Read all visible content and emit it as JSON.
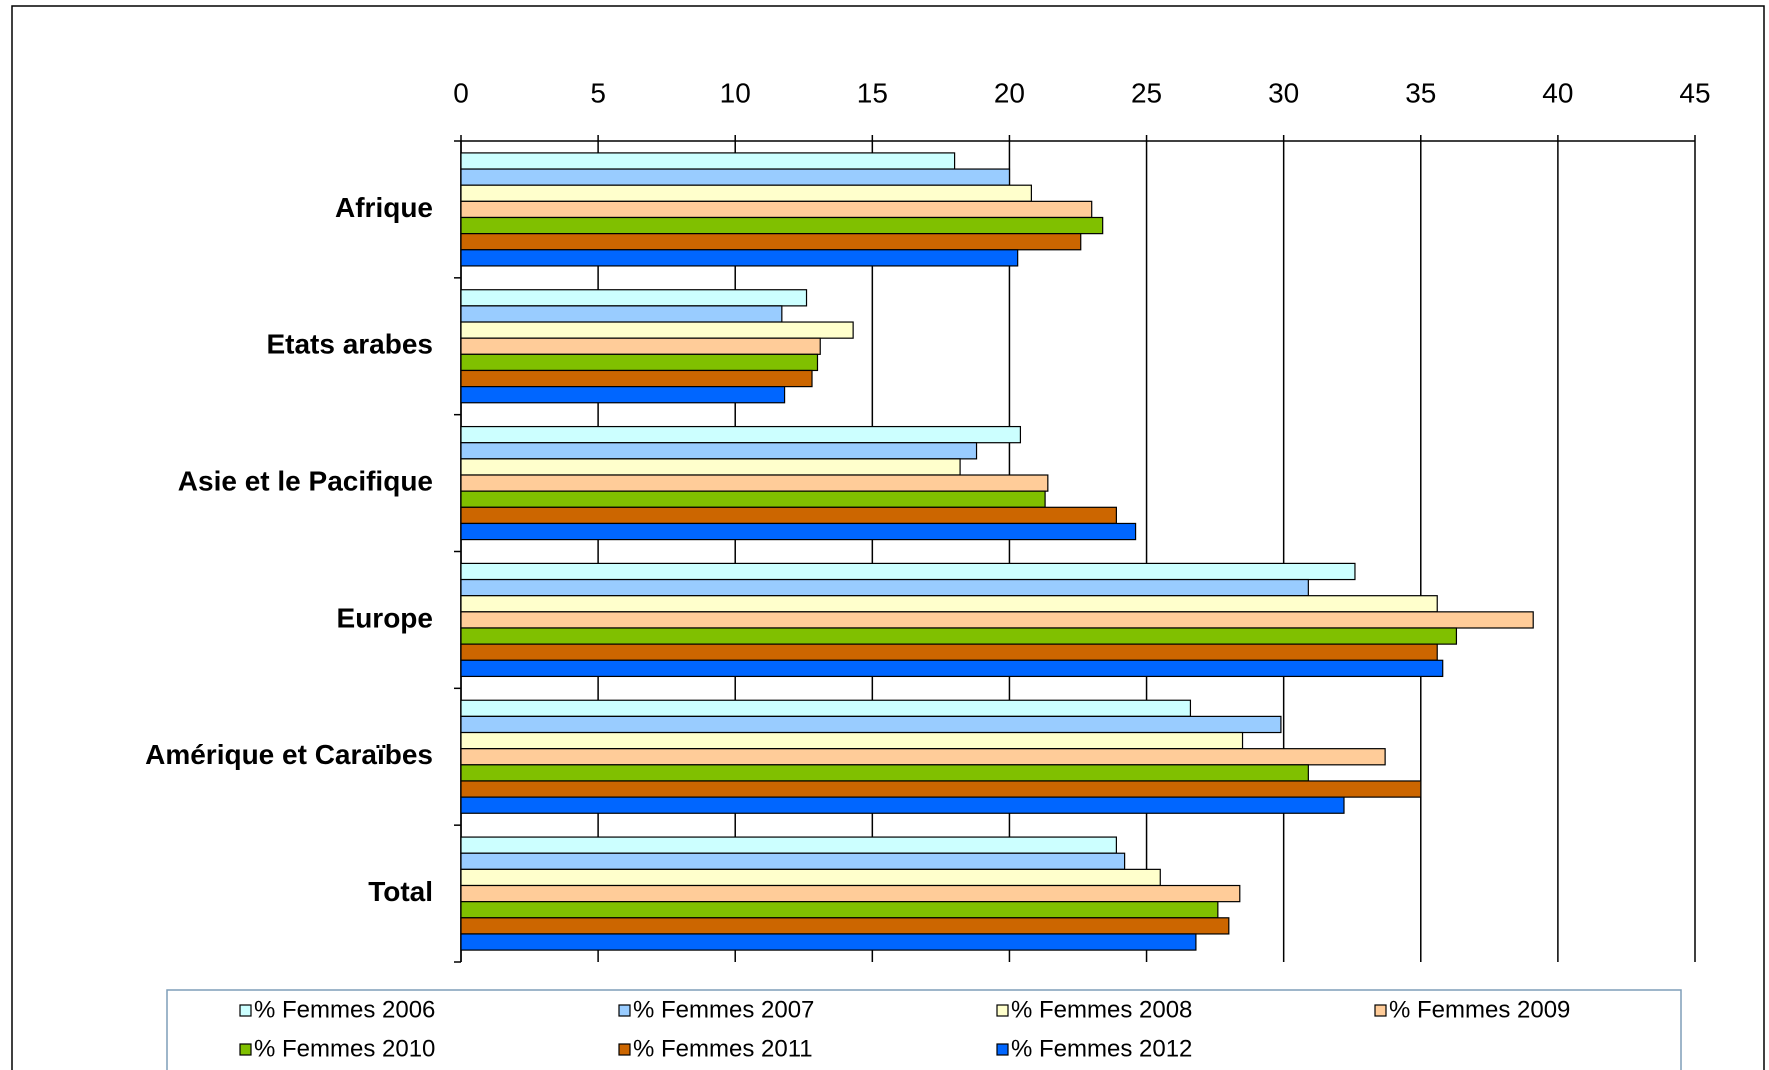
{
  "chart_data": {
    "type": "barh",
    "categories": [
      "Afrique",
      "Etats arabes",
      "Asie et le Pacifique",
      "Europe",
      "Amérique et Caraïbes",
      "Total"
    ],
    "series": [
      {
        "name": "% Femmes 2006",
        "color": "#ccffff",
        "values": [
          18.0,
          12.6,
          20.4,
          32.6,
          26.6,
          23.9
        ]
      },
      {
        "name": "% Femmes 2007",
        "color": "#99ccff",
        "values": [
          20.0,
          11.7,
          18.8,
          30.9,
          29.9,
          24.2
        ]
      },
      {
        "name": "% Femmes 2008",
        "color": "#ffffcc",
        "values": [
          20.8,
          14.3,
          18.2,
          35.6,
          28.5,
          25.5
        ]
      },
      {
        "name": "% Femmes 2009",
        "color": "#ffcc99",
        "values": [
          23.0,
          13.1,
          21.4,
          39.1,
          33.7,
          28.4
        ]
      },
      {
        "name": "% Femmes 2010",
        "color": "#80c000",
        "values": [
          23.4,
          13.0,
          21.3,
          36.3,
          30.9,
          27.6
        ]
      },
      {
        "name": "% Femmes 2011",
        "color": "#cc6600",
        "values": [
          22.6,
          12.8,
          23.9,
          35.6,
          35.0,
          28.0
        ]
      },
      {
        "name": "% Femmes 2012",
        "color": "#0066ff",
        "values": [
          20.3,
          11.8,
          24.6,
          35.8,
          32.2,
          26.8
        ]
      }
    ],
    "xlim": [
      0,
      45
    ],
    "xticks": [
      0,
      5,
      10,
      15,
      20,
      25,
      30,
      35,
      40,
      45
    ],
    "xaxis_position": "top",
    "grid": true,
    "legend": "bottom"
  }
}
